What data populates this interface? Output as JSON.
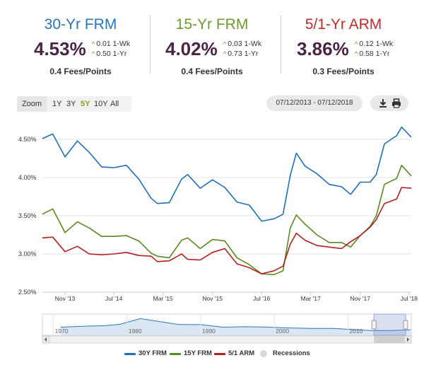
{
  "colors": {
    "frm30": "#1f6fb7",
    "frm15": "#5a8a1f",
    "arm51": "#b32020",
    "value": "#4a2646",
    "recession": "#d8d8d8",
    "change_arrow": "#6a8d2a"
  },
  "rates": [
    {
      "title": "30-Yr FRM",
      "value": "4.53%",
      "wk": "0.01 1-Wk",
      "yr": "0.50 1-Yr",
      "fees": "0.4 Fees/Points",
      "color": "#2a76b8"
    },
    {
      "title": "15-Yr FRM",
      "value": "4.02%",
      "wk": "0.03 1-Wk",
      "yr": "0.73 1-Yr",
      "fees": "0.4 Fees/Points",
      "color": "#6e9a2e"
    },
    {
      "title": "5/1-Yr ARM",
      "value": "3.86%",
      "wk": "0.12 1-Wk",
      "yr": "0.58 1-Yr",
      "fees": "0.3 Fees/Points",
      "color": "#c42b2b"
    }
  ],
  "toolbar": {
    "zoom_label": "Zoom",
    "zoom_options": [
      "1Y",
      "3Y",
      "5Y",
      "10Y",
      "All"
    ],
    "zoom_selected": "5Y",
    "date_range": "07/12/2013 - 07/12/2018",
    "download_icon": "download-icon",
    "print_icon": "printer-icon"
  },
  "chart_data": {
    "type": "line",
    "x_range": [
      "2013-07-12",
      "2018-07-12"
    ],
    "ylim": [
      2.5,
      4.75
    ],
    "y_ticks": [
      "2.50%",
      "3.00%",
      "3.50%",
      "4.00%",
      "4.50%"
    ],
    "x_ticks": [
      "Nov '13",
      "Jul '14",
      "Mar '15",
      "Nov '15",
      "Jul '16",
      "Mar '17",
      "Nov '17",
      "Jul '18"
    ],
    "grid": true,
    "legend_position": "bottom",
    "series": [
      {
        "name": "30Y FRM",
        "color": "#1f6fb7",
        "dates": [
          "2013-07-12",
          "2013-09-01",
          "2013-11-01",
          "2014-01-01",
          "2014-03-01",
          "2014-05-01",
          "2014-07-01",
          "2014-09-01",
          "2014-11-01",
          "2015-01-01",
          "2015-02-01",
          "2015-04-01",
          "2015-06-01",
          "2015-07-01",
          "2015-09-01",
          "2015-11-01",
          "2016-01-01",
          "2016-03-01",
          "2016-05-01",
          "2016-07-01",
          "2016-09-01",
          "2016-10-15",
          "2016-11-20",
          "2016-12-20",
          "2017-02-01",
          "2017-04-01",
          "2017-06-01",
          "2017-08-01",
          "2017-09-15",
          "2017-11-01",
          "2017-12-20",
          "2018-01-20",
          "2018-03-01",
          "2018-05-01",
          "2018-05-25",
          "2018-07-12"
        ],
        "values": [
          4.51,
          4.57,
          4.27,
          4.48,
          4.33,
          4.14,
          4.13,
          4.16,
          3.98,
          3.73,
          3.66,
          3.67,
          3.98,
          4.04,
          3.86,
          3.97,
          3.87,
          3.68,
          3.64,
          3.43,
          3.46,
          3.52,
          4.03,
          4.32,
          4.15,
          4.05,
          3.91,
          3.88,
          3.78,
          3.94,
          3.94,
          4.04,
          4.44,
          4.55,
          4.66,
          4.53
        ]
      },
      {
        "name": "15Y FRM",
        "color": "#5a8a1f",
        "dates": [
          "2013-07-12",
          "2013-09-01",
          "2013-11-01",
          "2014-01-01",
          "2014-03-01",
          "2014-05-01",
          "2014-07-01",
          "2014-09-01",
          "2014-11-01",
          "2015-01-01",
          "2015-02-01",
          "2015-04-01",
          "2015-06-01",
          "2015-07-01",
          "2015-09-01",
          "2015-11-01",
          "2016-01-01",
          "2016-03-01",
          "2016-05-01",
          "2016-07-01",
          "2016-09-01",
          "2016-10-15",
          "2016-11-20",
          "2016-12-20",
          "2017-02-01",
          "2017-04-01",
          "2017-06-01",
          "2017-08-01",
          "2017-09-15",
          "2017-11-01",
          "2017-12-20",
          "2018-01-20",
          "2018-03-01",
          "2018-05-01",
          "2018-05-25",
          "2018-07-12"
        ],
        "values": [
          3.52,
          3.59,
          3.28,
          3.42,
          3.34,
          3.23,
          3.23,
          3.24,
          3.17,
          3.01,
          2.97,
          2.95,
          3.18,
          3.21,
          3.07,
          3.19,
          3.17,
          2.95,
          2.86,
          2.74,
          2.73,
          2.78,
          3.34,
          3.51,
          3.39,
          3.25,
          3.15,
          3.15,
          3.09,
          3.24,
          3.36,
          3.5,
          3.91,
          3.99,
          4.16,
          4.02
        ]
      },
      {
        "name": "5/1 ARM",
        "color": "#b32020",
        "dates": [
          "2013-07-12",
          "2013-09-01",
          "2013-11-01",
          "2014-01-01",
          "2014-03-01",
          "2014-05-01",
          "2014-07-01",
          "2014-09-01",
          "2014-11-01",
          "2015-01-01",
          "2015-02-01",
          "2015-04-01",
          "2015-06-01",
          "2015-07-01",
          "2015-09-01",
          "2015-11-01",
          "2016-01-01",
          "2016-03-01",
          "2016-05-01",
          "2016-07-01",
          "2016-09-01",
          "2016-10-15",
          "2016-11-20",
          "2016-12-20",
          "2017-02-01",
          "2017-04-01",
          "2017-06-01",
          "2017-08-01",
          "2017-09-15",
          "2017-11-01",
          "2017-12-20",
          "2018-01-20",
          "2018-03-01",
          "2018-05-01",
          "2018-05-25",
          "2018-07-12"
        ],
        "values": [
          3.21,
          3.22,
          3.03,
          3.1,
          3.0,
          2.99,
          3.0,
          3.02,
          2.98,
          2.97,
          2.9,
          2.91,
          3.0,
          2.93,
          2.92,
          3.02,
          3.07,
          2.87,
          2.82,
          2.74,
          2.78,
          2.84,
          3.13,
          3.27,
          3.18,
          3.11,
          3.09,
          3.07,
          3.16,
          3.24,
          3.35,
          3.45,
          3.66,
          3.72,
          3.87,
          3.86
        ]
      }
    ],
    "recessions_legend": "Recessions",
    "navigator": {
      "labels": [
        "1970",
        "1980",
        "1990",
        "2000",
        "2010"
      ],
      "years": [
        1971,
        1974,
        1977,
        1979,
        1981.8,
        1984,
        1987,
        1990,
        1993,
        1996,
        1999,
        2002,
        2005,
        2008,
        2011,
        2013,
        2016,
        2018.5
      ],
      "values": [
        7.3,
        8.3,
        8.9,
        10.4,
        16.6,
        13.9,
        10.2,
        10.1,
        7.3,
        7.8,
        7.4,
        6.5,
        5.9,
        6.0,
        4.5,
        3.6,
        3.7,
        4.5
      ]
    }
  }
}
